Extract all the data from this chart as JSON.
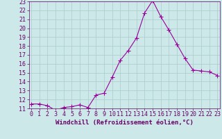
{
  "x": [
    0,
    1,
    2,
    3,
    4,
    5,
    6,
    7,
    8,
    9,
    10,
    11,
    12,
    13,
    14,
    15,
    16,
    17,
    18,
    19,
    20,
    21,
    22,
    23
  ],
  "y": [
    11.5,
    11.5,
    11.3,
    10.8,
    11.1,
    11.2,
    11.4,
    11.1,
    12.5,
    12.7,
    14.5,
    16.4,
    17.5,
    18.9,
    21.7,
    23.1,
    21.3,
    19.8,
    18.2,
    16.6,
    15.3,
    15.2,
    15.1,
    14.7
  ],
  "line_color": "#990099",
  "marker": "+",
  "marker_size": 4,
  "bg_color": "#cce8e8",
  "grid_color": "#aacccc",
  "xlabel": "Windchill (Refroidissement éolien,°C)",
  "label_color": "#660066",
  "tick_color": "#660066",
  "axis_color": "#660066",
  "xlabel_fontsize": 6.5,
  "tick_fontsize": 6.0,
  "ylim_min": 11,
  "ylim_max": 23,
  "xlim_min": 0,
  "xlim_max": 23
}
